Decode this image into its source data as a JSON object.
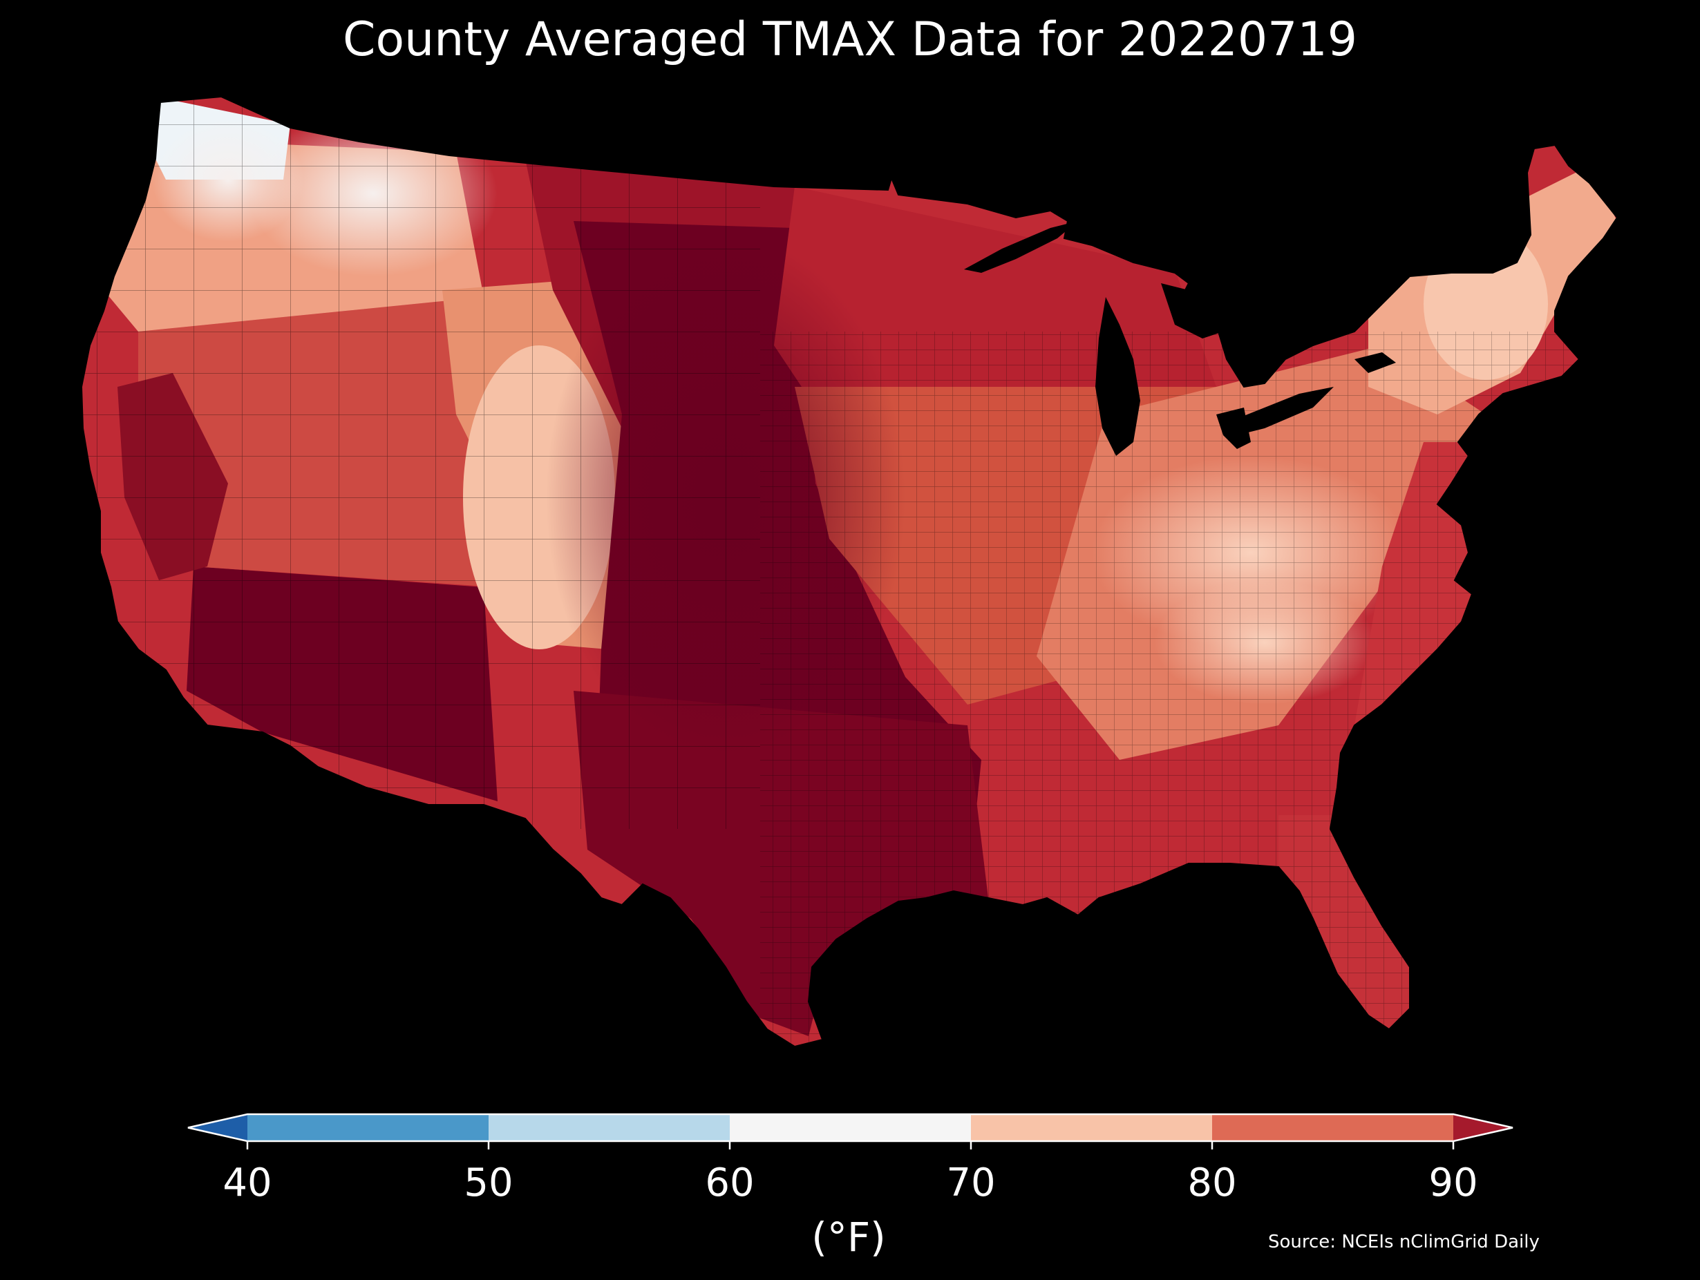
{
  "title": "County Averaged TMAX Data for 20220719",
  "source": "Source: NCEIs nClimGrid Daily",
  "colorbar": {
    "units": "(°F)",
    "ticks": [
      "40",
      "50",
      "60",
      "70",
      "80",
      "90"
    ],
    "tick_values": [
      40,
      50,
      60,
      70,
      80,
      90
    ],
    "bins": [
      {
        "from": 40,
        "to": 50,
        "color": "#4a98c9"
      },
      {
        "from": 50,
        "to": 60,
        "color": "#b7d8ea"
      },
      {
        "from": 60,
        "to": 70,
        "color": "#f5f5f5"
      },
      {
        "from": 70,
        "to": 80,
        "color": "#f8c3a8"
      },
      {
        "from": 80,
        "to": 90,
        "color": "#de6a55"
      }
    ],
    "under_color": "#1e5ea8",
    "over_color": "#a51a2c",
    "extend": "both"
  },
  "map": {
    "region": "Contiguous United States",
    "unit_level": "county",
    "variable": "TMAX",
    "ocean_color": "#000000",
    "county_border_color": "#000000",
    "zones": [
      {
        "name": "pacific-northwest-coast",
        "value_band": "60-70",
        "color": "#eef4f8"
      },
      {
        "name": "northern-rockies-cool",
        "value_band": "60-70",
        "color": "#f5f0ee"
      },
      {
        "name": "northwest-interior",
        "value_band": "70-80",
        "color": "#f6c1a6"
      },
      {
        "name": "great-basin",
        "value_band": "80-90",
        "color": "#cd4a43"
      },
      {
        "name": "california-valleys",
        "value_band": ">90",
        "color": "#8a0e24"
      },
      {
        "name": "desert-southwest",
        "value_band": ">90",
        "color": "#6d0021"
      },
      {
        "name": "colorado-rockies",
        "value_band": "70-80",
        "color": "#f1a788"
      },
      {
        "name": "great-plains",
        "value_band": ">90",
        "color": "#6d0021"
      },
      {
        "name": "texas",
        "value_band": ">90",
        "color": "#7a0422"
      },
      {
        "name": "upper-midwest",
        "value_band": "80-90",
        "color": "#b72230"
      },
      {
        "name": "ohio-valley",
        "value_band": "80-90",
        "color": "#e37d63"
      },
      {
        "name": "appalachians",
        "value_band": "70-80",
        "color": "#f8c2a7"
      },
      {
        "name": "new-england",
        "value_band": "70-80",
        "color": "#f2aa8d"
      },
      {
        "name": "mid-atlantic-coast",
        "value_band": "80-90",
        "color": "#c8323a"
      },
      {
        "name": "deep-south",
        "value_band": "80-90",
        "color": "#c02a35"
      },
      {
        "name": "florida",
        "value_band": "80-90",
        "color": "#c53139"
      }
    ]
  }
}
